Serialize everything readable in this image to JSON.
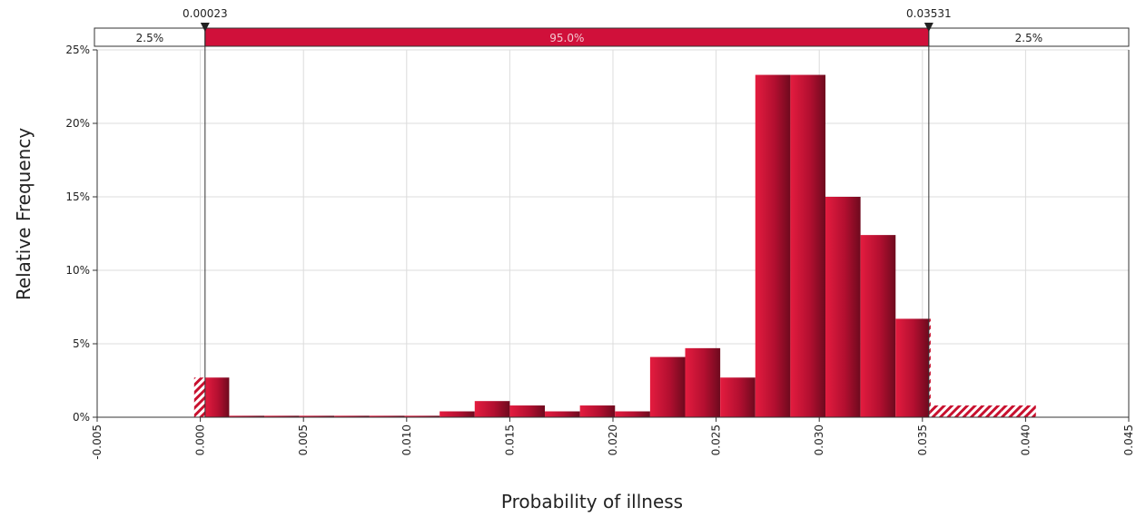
{
  "chart_data": {
    "type": "bar",
    "xlabel": "Probability of illness",
    "ylabel": "Relative Frequency",
    "xlim": [
      -0.005,
      0.045
    ],
    "ylim": [
      0,
      25
    ],
    "x_ticks": [
      "-0.005",
      "0.000",
      "0.005",
      "0.010",
      "0.015",
      "0.020",
      "0.025",
      "0.030",
      "0.035",
      "0.040",
      "0.045"
    ],
    "y_ticks": [
      "0%",
      "5%",
      "10%",
      "15%",
      "20%",
      "25%"
    ],
    "grid": true,
    "bin_width": 0.0017,
    "bins": [
      {
        "x0": -0.0003,
        "value": 2.7
      },
      {
        "x0": 0.0014,
        "value": 0.1
      },
      {
        "x0": 0.0031,
        "value": 0.1
      },
      {
        "x0": 0.0048,
        "value": 0.1
      },
      {
        "x0": 0.0065,
        "value": 0.1
      },
      {
        "x0": 0.0082,
        "value": 0.1
      },
      {
        "x0": 0.0099,
        "value": 0.1
      },
      {
        "x0": 0.0116,
        "value": 0.4
      },
      {
        "x0": 0.0133,
        "value": 1.1
      },
      {
        "x0": 0.015,
        "value": 0.8
      },
      {
        "x0": 0.0167,
        "value": 0.4
      },
      {
        "x0": 0.0184,
        "value": 0.8
      },
      {
        "x0": 0.0201,
        "value": 0.4
      },
      {
        "x0": 0.0218,
        "value": 4.1
      },
      {
        "x0": 0.0235,
        "value": 4.7
      },
      {
        "x0": 0.0252,
        "value": 2.7
      },
      {
        "x0": 0.0269,
        "value": 23.3
      },
      {
        "x0": 0.0286,
        "value": 23.3
      },
      {
        "x0": 0.0303,
        "value": 15.0
      },
      {
        "x0": 0.032,
        "value": 12.4
      },
      {
        "x0": 0.0337,
        "value": 6.7
      },
      {
        "x0": 0.0354,
        "value": 0.8
      },
      {
        "x0": 0.0371,
        "value": 0.8
      },
      {
        "x0": 0.0388,
        "value": 0.8
      }
    ],
    "interval": {
      "lower": 0.00023,
      "upper": 0.03531,
      "lower_label": "0.00023",
      "upper_label": "0.03531",
      "left_tail_label": "2.5%",
      "center_label": "95.0%",
      "right_tail_label": "2.5%"
    },
    "colors": {
      "bar": "#c8102e",
      "bar_dark": "#7a0a20",
      "band": "#d0103a",
      "grid": "#dcdcdc",
      "axis": "#333333"
    }
  }
}
